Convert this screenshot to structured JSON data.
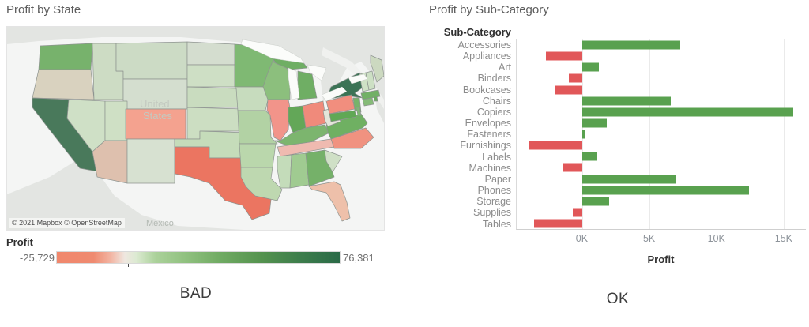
{
  "left_panel": {
    "title": "Profit by State",
    "caption": "BAD",
    "map": {
      "attribution": "© 2021 Mapbox © OpenStreetMap",
      "region_labels": {
        "country_line1": "United",
        "country_line2": "States",
        "mexico": "Mexico"
      },
      "water_color": "#f4f5f4",
      "foreign_land_color": "#e3e5e2",
      "state_border_color": "#8e9490"
    },
    "legend": {
      "title": "Profit",
      "min_label": "-25,729",
      "max_label": "76,381",
      "zero_tick_fraction": 0.252
    }
  },
  "right_panel": {
    "title": "Profit by Sub-Category",
    "row_header": "Sub-Category",
    "axis_title": "Profit",
    "caption": "OK"
  },
  "chart_data": [
    {
      "type": "choropleth",
      "title": "Profit by State",
      "measure": "Profit",
      "legend_min": -25729,
      "legend_max": 76381,
      "diverging_palette": "red-green",
      "states": [
        {
          "id": "WA",
          "name": "Washington",
          "color": "#77b26c"
        },
        {
          "id": "OR",
          "name": "Oregon",
          "color": "#d9d2bf"
        },
        {
          "id": "CA",
          "name": "California",
          "color": "#49795b"
        },
        {
          "id": "NV",
          "name": "Nevada",
          "color": "#cfe0c6"
        },
        {
          "id": "ID",
          "name": "Idaho",
          "color": "#cddcc4"
        },
        {
          "id": "MT",
          "name": "Montana",
          "color": "#ccdbc5"
        },
        {
          "id": "WY",
          "name": "Wyoming",
          "color": "#d4decf"
        },
        {
          "id": "UT",
          "name": "Utah",
          "color": "#cfe0c5"
        },
        {
          "id": "CO",
          "name": "Colorado",
          "color": "#f4a28f"
        },
        {
          "id": "AZ",
          "name": "Arizona",
          "color": "#dec0ae"
        },
        {
          "id": "NM",
          "name": "New Mexico",
          "color": "#d7e1d1"
        },
        {
          "id": "ND",
          "name": "North Dakota",
          "color": "#d4ddcf"
        },
        {
          "id": "SD",
          "name": "South Dakota",
          "color": "#cedfc5"
        },
        {
          "id": "NE",
          "name": "Nebraska",
          "color": "#c9dcbf"
        },
        {
          "id": "KS",
          "name": "Kansas",
          "color": "#ccdec2"
        },
        {
          "id": "OK",
          "name": "Oklahoma",
          "color": "#c5dcba"
        },
        {
          "id": "TX",
          "name": "Texas",
          "color": "#eb7561"
        },
        {
          "id": "MN",
          "name": "Minnesota",
          "color": "#7fb973"
        },
        {
          "id": "IA",
          "name": "Iowa",
          "color": "#c7dcbe"
        },
        {
          "id": "MO",
          "name": "Missouri",
          "color": "#b2d2a4"
        },
        {
          "id": "AR",
          "name": "Arkansas",
          "color": "#bad7ac"
        },
        {
          "id": "LA",
          "name": "Louisiana",
          "color": "#bed8b0"
        },
        {
          "id": "WI",
          "name": "Wisconsin",
          "color": "#8cbf7d"
        },
        {
          "id": "IL",
          "name": "Illinois",
          "color": "#f2948a"
        },
        {
          "id": "MI",
          "name": "Michigan",
          "color": "#6fae64"
        },
        {
          "id": "IN",
          "name": "Indiana",
          "color": "#63a758"
        },
        {
          "id": "OH",
          "name": "Ohio",
          "color": "#f08a7b"
        },
        {
          "id": "KY",
          "name": "Kentucky",
          "color": "#7cb56e"
        },
        {
          "id": "TN",
          "name": "Tennessee",
          "color": "#efbab0"
        },
        {
          "id": "MS",
          "name": "Mississippi",
          "color": "#c4dcba"
        },
        {
          "id": "AL",
          "name": "Alabama",
          "color": "#a0cb91"
        },
        {
          "id": "GA",
          "name": "Georgia",
          "color": "#75b169"
        },
        {
          "id": "SC",
          "name": "South Carolina",
          "color": "#cfe0c6"
        },
        {
          "id": "NC",
          "name": "North Carolina",
          "color": "#f09280"
        },
        {
          "id": "VA",
          "name": "Virginia",
          "color": "#6fb062"
        },
        {
          "id": "WV",
          "name": "West Virginia",
          "color": "#e4e6da"
        },
        {
          "id": "FL",
          "name": "Florida",
          "color": "#eec0aa"
        },
        {
          "id": "PA",
          "name": "Pennsylvania",
          "color": "#f18e7e"
        },
        {
          "id": "NY",
          "name": "New York",
          "color": "#3b7355"
        },
        {
          "id": "NJ",
          "name": "New Jersey",
          "color": "#77b36a"
        },
        {
          "id": "MD",
          "name": "Maryland",
          "color": "#60a855"
        },
        {
          "id": "DE",
          "name": "Delaware",
          "color": "#7fb873"
        },
        {
          "id": "VT",
          "name": "Vermont",
          "color": "#cfe2c6"
        },
        {
          "id": "NH",
          "name": "New Hampshire",
          "color": "#cde0c4"
        },
        {
          "id": "ME",
          "name": "Maine",
          "color": "#ccd9c0"
        },
        {
          "id": "MA",
          "name": "Massachusetts",
          "color": "#72b066"
        },
        {
          "id": "CT",
          "name": "Connecticut",
          "color": "#85bb77"
        },
        {
          "id": "RI",
          "name": "Rhode Island",
          "color": "#68ab5d"
        }
      ]
    },
    {
      "type": "bar",
      "orientation": "horizontal",
      "title": "Profit by Sub-Category",
      "xlabel": "Profit",
      "ylabel": "Sub-Category",
      "xlim": [
        -4900,
        16650
      ],
      "grid": true,
      "ticks": [
        {
          "value": 0,
          "label": "0K"
        },
        {
          "value": 5000,
          "label": "5K"
        },
        {
          "value": 10000,
          "label": "10K"
        },
        {
          "value": 15000,
          "label": "15K"
        }
      ],
      "positive_color": "#59a14f",
      "negative_color": "#e15759",
      "categories": [
        "Accessories",
        "Appliances",
        "Art",
        "Binders",
        "Bookcases",
        "Chairs",
        "Copiers",
        "Envelopes",
        "Fasteners",
        "Furnishings",
        "Labels",
        "Machines",
        "Paper",
        "Phones",
        "Storage",
        "Supplies",
        "Tables"
      ],
      "values": [
        7300,
        -2700,
        1200,
        -1000,
        -2000,
        6600,
        15700,
        1800,
        200,
        -4000,
        1100,
        -1500,
        7000,
        12400,
        2000,
        -700,
        -3600
      ]
    }
  ]
}
